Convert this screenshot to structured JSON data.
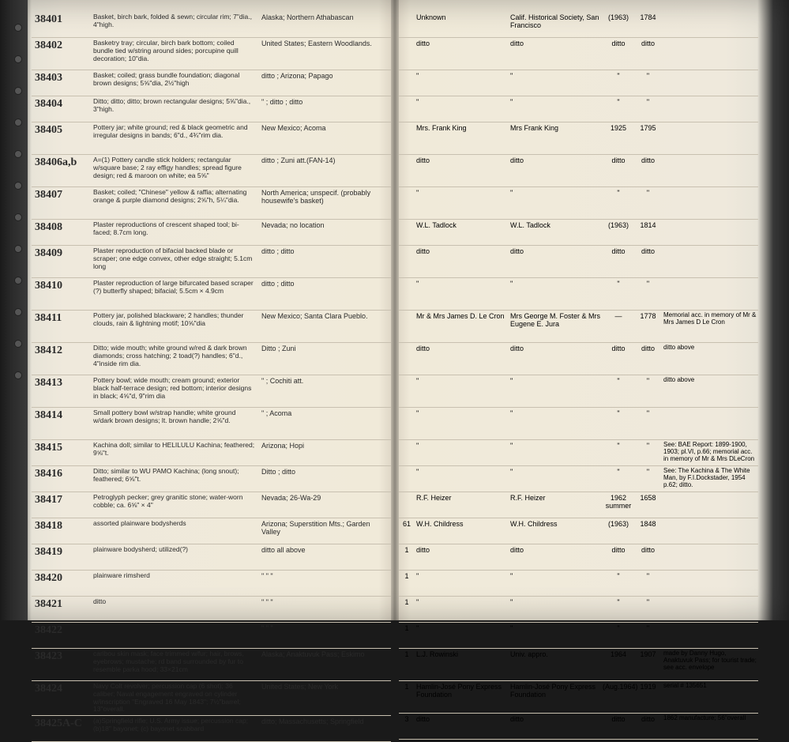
{
  "rows": [
    {
      "id": "38401",
      "desc": "Basket, birch bark, folded & sewn; circular rim; 7\"dia., 4\"high.",
      "loc": "Alaska; Northern Athabascan",
      "a": "",
      "b": "Unknown",
      "c": "Calif. Historical Society, San Francisco",
      "d": "(1963)",
      "e": "1784",
      "f": ""
    },
    {
      "id": "38402",
      "desc": "Basketry tray; circular, birch bark bottom; coiled bundle tied w/string around sides; porcupine quill decoration; 10\"dia.",
      "loc": "United States; Eastern Woodlands.",
      "a": "",
      "b": "ditto",
      "c": "ditto",
      "d": "ditto",
      "e": "ditto",
      "f": ""
    },
    {
      "id": "38403",
      "desc": "Basket; coiled; grass bundle foundation; diagonal brown designs; 5⅝\"dia, 2½\"high",
      "loc": "ditto     ; Arizona; Papago",
      "a": "",
      "b": "\"",
      "c": "\"",
      "d": "\"",
      "e": "\"",
      "f": ""
    },
    {
      "id": "38404",
      "desc": "Ditto; ditto; ditto; brown rectangular designs; 5⅝\"dia., 3\"high.",
      "loc": "\"        ; ditto  ; ditto",
      "a": "",
      "b": "\"",
      "c": "\"",
      "d": "\"",
      "e": "\"",
      "f": ""
    },
    {
      "id": "38405",
      "desc": "Pottery jar; white ground; red & black geometric and irregular designs in bands; 6\"d., 4¾\"rim dia.",
      "loc": "New Mexico; Acoma",
      "a": "",
      "b": "Mrs. Frank King",
      "c": "Mrs Frank King",
      "d": "1925",
      "e": "1795",
      "f": ""
    },
    {
      "id": "38406a,b",
      "desc": "A=(1) Pottery candle stick holders; rectangular w/square base; 2 ray effigy handles; spread figure design; red & maroon on white; ea 5⅝\"",
      "loc": "ditto   ; Zuni att.(FAN-14)",
      "a": "",
      "b": "ditto",
      "c": "ditto",
      "d": "ditto",
      "e": "ditto",
      "f": ""
    },
    {
      "id": "38407",
      "desc": "Basket; coiled; \"Chinese\" yellow & raffia; alternating orange & purple diamond designs; 2⅝\"h, 5¼\"dia.",
      "loc": "North America; unspecif. (probably housewife's basket)",
      "a": "",
      "b": "\"",
      "c": "\"",
      "d": "\"",
      "e": "\"",
      "f": ""
    },
    {
      "id": "38408",
      "desc": "Plaster reproductions of crescent shaped tool; bi-faced; 8.7cm long.",
      "loc": "Nevada; no location",
      "a": "",
      "b": "W.L. Tadlock",
      "c": "W.L. Tadlock",
      "d": "(1963)",
      "e": "1814",
      "f": ""
    },
    {
      "id": "38409",
      "desc": "Plaster reproduction of bifacial backed blade or scraper; one edge convex, other edge straight; 5.1cm long",
      "loc": "ditto  ; ditto",
      "a": "",
      "b": "ditto",
      "c": "ditto",
      "d": "ditto",
      "e": "ditto",
      "f": ""
    },
    {
      "id": "38410",
      "desc": "Plaster reproduction of large bifurcated based scraper (?) butterfly shaped; bifacial; 5.5cm × 4.9cm",
      "loc": "ditto ; ditto",
      "a": "",
      "b": "\"",
      "c": "\"",
      "d": "\"",
      "e": "\"",
      "f": ""
    },
    {
      "id": "38411",
      "desc": "Pottery jar, polished blackware; 2 handles; thunder clouds, rain & lightning motif; 10⅝\"dia",
      "loc": "New Mexico; Santa Clara Pueblo.",
      "a": "",
      "b": "Mr & Mrs James D. Le Cron",
      "c": "Mrs George M. Foster & Mrs Eugene E. Jura",
      "d": "—",
      "e": "1778",
      "f": "Memorial acc. in memory of Mr & Mrs James D Le Cron"
    },
    {
      "id": "38412",
      "desc": "Ditto; wide mouth; white ground w/red & dark brown diamonds; cross hatching; 2 toad(?) handles; 6\"d., 4\"inside rim dia.",
      "loc": "Ditto ; Zuni",
      "a": "",
      "b": "ditto",
      "c": "ditto",
      "d": "ditto",
      "e": "ditto",
      "f": "ditto above"
    },
    {
      "id": "38413",
      "desc": "Pottery bowl; wide mouth; cream ground; exterior black half-terrace design; red bottom; interior designs in black; 4⅝\"d, 9\"rim dia",
      "loc": "\"    ; Cochiti att.",
      "a": "",
      "b": "\"",
      "c": "\"",
      "d": "\"",
      "e": "\"",
      "f": "ditto above"
    },
    {
      "id": "38414",
      "desc": "Small pottery bowl w/strap handle; white ground w/dark brown designs; lt. brown handle; 2⅝\"d.",
      "loc": "\"   ; Acoma",
      "a": "",
      "b": "\"",
      "c": "\"",
      "d": "\"",
      "e": "\"",
      "f": ""
    },
    {
      "id": "38415",
      "desc": "Kachina doll; similar to HELILULU Kachina; feathered; 9⅝\"t.",
      "loc": "Arizona; Hopi",
      "a": "",
      "b": "\"",
      "c": "\"",
      "d": "\"",
      "e": "\"",
      "f": "See: BAE Report: 1899-1900, 1903; pl.VI, p.66; memorial acc. in memory of Mr & Mrs DLeCron"
    },
    {
      "id": "38416",
      "desc": "Ditto; similar to WU PAMO Kachina; (long snout); feathered; 6⅝\"t.",
      "loc": "Ditto ; ditto",
      "a": "",
      "b": "\"",
      "c": "\"",
      "d": "\"",
      "e": "\"",
      "f": "See: The Kachina & The White Man, by F.I.Dockstader, 1954 p.62; ditto."
    },
    {
      "id": "38417",
      "desc": "Petroglyph pecker; grey granitic stone; water-worn cobble; ca. 6⅝\" × 4\"",
      "loc": "Nevada; 26-Wa-29",
      "a": "",
      "b": "R.F. Heizer",
      "c": "R.F. Heizer",
      "d": "1962 summer",
      "e": "1658",
      "f": ""
    },
    {
      "id": "38418",
      "desc": "assorted plainware bodysherds",
      "loc": "Arizona; Superstition Mts.; Garden Valley",
      "a": "61",
      "b": "W.H. Childress",
      "c": "W.H. Childress",
      "d": "(1963)",
      "e": "1848",
      "f": ""
    },
    {
      "id": "38419",
      "desc": "plainware bodysherd; utilized(?)",
      "loc": "ditto all above",
      "a": "1",
      "b": "ditto",
      "c": "ditto",
      "d": "ditto",
      "e": "ditto",
      "f": ""
    },
    {
      "id": "38420",
      "desc": "plainware rimsherd",
      "loc": "\"    \"    \"",
      "a": "1",
      "b": "\"",
      "c": "\"",
      "d": "\"",
      "e": "\"",
      "f": ""
    },
    {
      "id": "38421",
      "desc": "ditto",
      "loc": "\"    \"    \"",
      "a": "1",
      "b": "\"",
      "c": "\"",
      "d": "\"",
      "e": "\"",
      "f": ""
    },
    {
      "id": "38422",
      "desc": "",
      "loc": "\"    \"    \"",
      "a": "1",
      "b": "\"",
      "c": "\"",
      "d": "\"",
      "e": "\"",
      "f": ""
    },
    {
      "id": "38423",
      "desc": "caribou skin mask; face trimmed w/fur; hair, brows, eyebrows; mustache; rd band surrounded by fur to resemble parka hood; 33×21cm",
      "loc": "Alaska; Anaktuvuk Pass; Eskimo",
      "a": "1",
      "b": "L.J. Rowinski",
      "c": "Univ. appro.",
      "d": "1964",
      "e": "1907",
      "f": "made by Danny Hugo, Anaktuvuk Pass; for tourist trade; see acc. envelope"
    },
    {
      "id": "38424",
      "desc": "Navy Colt revolver; percussion cap (6 shot); 36 caliber; Naval engagement engraved on cylinder w/inscription \"Engraved 16 May 1843\"; 7½\"barrel; 13\"overall.",
      "loc": "United States; New York",
      "a": "1",
      "b": "Hamlin-José Pony Express Foundation",
      "c": "Hamlin-José Pony Express Foundation",
      "d": "(Aug.1964)",
      "e": "1919",
      "f": "serial # 135651"
    },
    {
      "id": "38425A-C",
      "desc": "(a)Springfield rifle; U.S. Army issue; percussion cap;(b)18\" bayonet; (c) bayonet scabbard",
      "loc": "ditto; Massachusetts; Springfield",
      "a": "3",
      "b": "ditto",
      "c": "ditto",
      "d": "ditto",
      "e": "ditto",
      "f": "1862 manufacture; 56\"overall"
    }
  ]
}
